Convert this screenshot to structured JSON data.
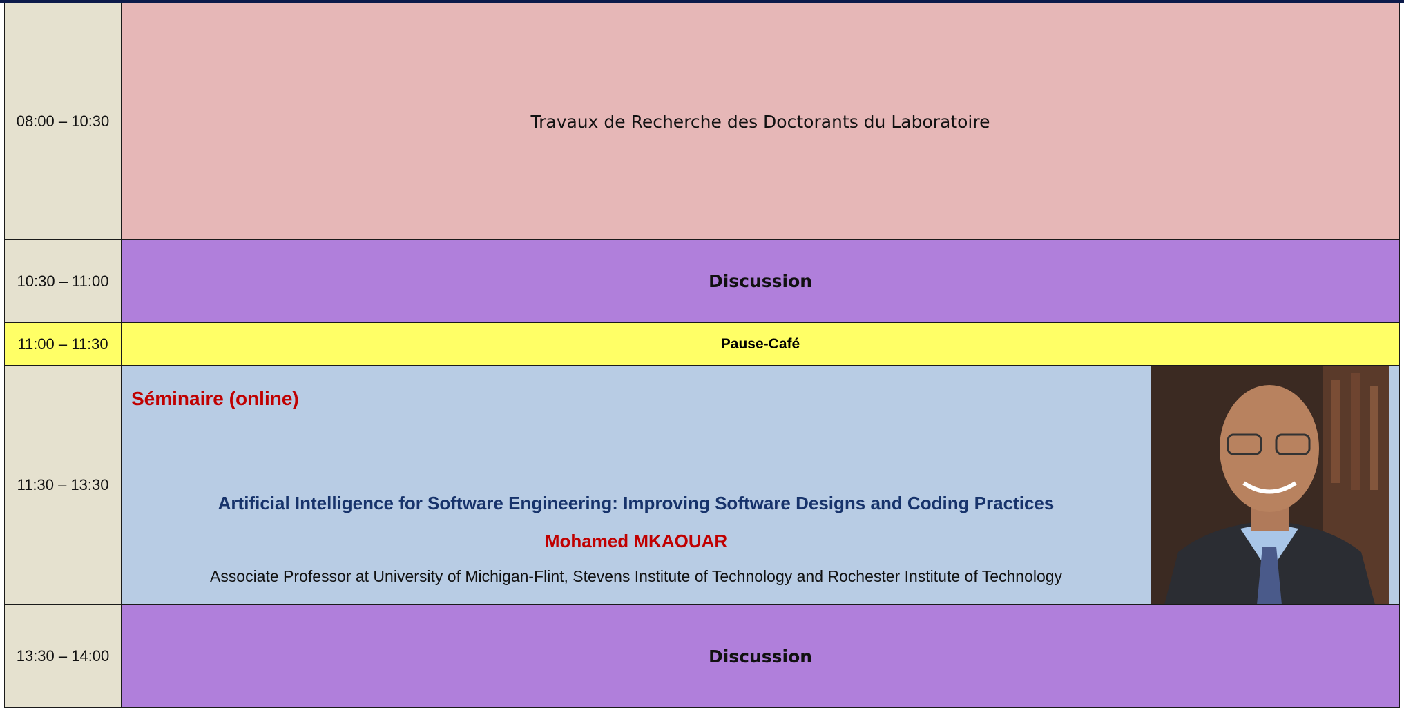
{
  "schedule": {
    "rows": [
      {
        "time": "08:00 – 10:30",
        "title": "Travaux de Recherche des Doctorants du Laboratoire"
      },
      {
        "time": "10:30 – 11:00",
        "title": "Discussion"
      },
      {
        "time": "11:00 – 11:30",
        "title": "Pause-Café"
      },
      {
        "time": "11:30 – 13:30",
        "label": "Séminaire (online)",
        "talk": "Artificial Intelligence for Software Engineering: Improving Software Designs and Coding Practices",
        "speaker": "Mohamed MKAOUAR",
        "affiliation": "Associate Professor at University of Michigan-Flint, Stevens Institute of Technology and Rochester Institute of Technology"
      },
      {
        "time": "13:30 – 14:00",
        "title": "Discussion"
      }
    ]
  }
}
